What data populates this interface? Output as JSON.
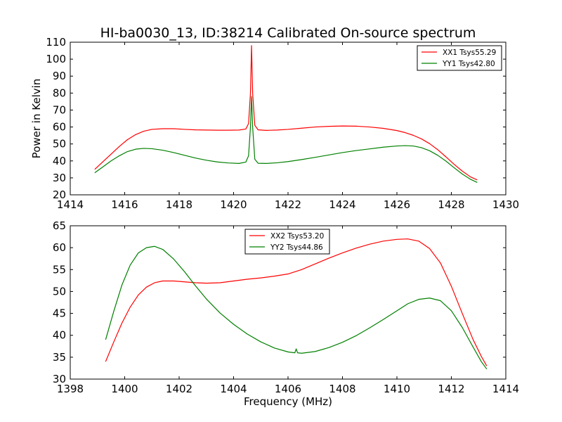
{
  "figure": {
    "title": "HI-ba0030_13, ID:38214 Calibrated On-source spectrum"
  },
  "colors": {
    "red": "#ff0000",
    "green": "#008000"
  },
  "chart_data": [
    {
      "type": "line",
      "title": "HI-ba0030_13, ID:38214 Calibrated On-source spectrum",
      "xlabel": "",
      "ylabel": "Power in Kelvin",
      "xlim": [
        1414,
        1430
      ],
      "ylim": [
        20,
        110
      ],
      "xticks": [
        1414,
        1416,
        1418,
        1420,
        1422,
        1424,
        1426,
        1428,
        1430
      ],
      "yticks": [
        20,
        30,
        40,
        50,
        60,
        70,
        80,
        90,
        100,
        110
      ],
      "grid": false,
      "legend_position": "top-right",
      "series": [
        {
          "name": "XX1 Tsys55.29",
          "color": "#ff0000",
          "x": [
            1414.9,
            1415.2,
            1415.5,
            1415.8,
            1416.1,
            1416.4,
            1416.7,
            1417.0,
            1417.4,
            1417.8,
            1418.2,
            1418.6,
            1419.0,
            1419.4,
            1419.8,
            1420.2,
            1420.45,
            1420.55,
            1420.62,
            1420.66,
            1420.7,
            1420.78,
            1420.9,
            1421.2,
            1421.6,
            1422.0,
            1422.5,
            1423.0,
            1423.5,
            1424.0,
            1424.5,
            1425.0,
            1425.5,
            1426.0,
            1426.3,
            1426.6,
            1426.9,
            1427.2,
            1427.5,
            1427.8,
            1428.1,
            1428.4,
            1428.7,
            1428.95
          ],
          "y": [
            35.0,
            39.5,
            44.0,
            48.5,
            52.5,
            55.5,
            57.5,
            58.6,
            59.0,
            59.0,
            58.6,
            58.3,
            58.2,
            58.1,
            58.1,
            58.2,
            58.8,
            62.0,
            80.0,
            108.0,
            80.0,
            61.0,
            58.3,
            58.0,
            58.2,
            58.6,
            59.3,
            60.0,
            60.4,
            60.6,
            60.5,
            60.0,
            59.2,
            57.9,
            56.7,
            55.1,
            53.0,
            50.2,
            46.6,
            42.4,
            38.0,
            34.0,
            30.6,
            28.8
          ]
        },
        {
          "name": "YY1 Tsys42.80",
          "color": "#008000",
          "x": [
            1414.9,
            1415.2,
            1415.5,
            1415.8,
            1416.1,
            1416.4,
            1416.7,
            1417.0,
            1417.4,
            1417.8,
            1418.2,
            1418.6,
            1419.0,
            1419.4,
            1419.8,
            1420.2,
            1420.45,
            1420.55,
            1420.62,
            1420.66,
            1420.7,
            1420.78,
            1420.9,
            1421.2,
            1421.6,
            1422.0,
            1422.5,
            1423.0,
            1423.5,
            1424.0,
            1424.5,
            1425.0,
            1425.5,
            1426.0,
            1426.3,
            1426.6,
            1426.9,
            1427.2,
            1427.5,
            1427.8,
            1428.1,
            1428.4,
            1428.7,
            1428.95
          ],
          "y": [
            33.0,
            36.5,
            40.0,
            43.0,
            45.5,
            46.9,
            47.4,
            47.2,
            46.3,
            44.9,
            43.3,
            41.7,
            40.4,
            39.4,
            38.8,
            38.5,
            39.3,
            43.0,
            60.0,
            78.0,
            60.0,
            41.0,
            38.6,
            38.5,
            38.9,
            39.6,
            40.8,
            42.1,
            43.5,
            44.9,
            46.1,
            47.1,
            48.1,
            48.8,
            49.0,
            48.8,
            47.8,
            46.0,
            43.3,
            39.9,
            36.0,
            32.3,
            29.2,
            27.3
          ]
        }
      ]
    },
    {
      "type": "line",
      "title": "",
      "xlabel": "Frequency (MHz)",
      "ylabel": "",
      "xlim": [
        1398,
        1414
      ],
      "ylim": [
        30,
        65
      ],
      "xticks": [
        1398,
        1400,
        1402,
        1404,
        1406,
        1408,
        1410,
        1412,
        1414
      ],
      "yticks": [
        30,
        35,
        40,
        45,
        50,
        55,
        60,
        65
      ],
      "grid": false,
      "legend_position": "top-center",
      "series": [
        {
          "name": "XX2 Tsys53.20",
          "color": "#ff0000",
          "x": [
            1399.3,
            1399.6,
            1399.9,
            1400.2,
            1400.5,
            1400.8,
            1401.1,
            1401.4,
            1401.8,
            1402.2,
            1402.6,
            1403.0,
            1403.5,
            1404.0,
            1404.5,
            1405.0,
            1405.5,
            1406.0,
            1406.5,
            1407.0,
            1407.5,
            1408.0,
            1408.5,
            1409.0,
            1409.5,
            1410.0,
            1410.4,
            1410.8,
            1411.2,
            1411.6,
            1412.0,
            1412.4,
            1412.8,
            1413.1,
            1413.3
          ],
          "y": [
            34.0,
            38.5,
            42.8,
            46.4,
            49.2,
            51.0,
            52.0,
            52.4,
            52.4,
            52.2,
            52.0,
            51.9,
            52.0,
            52.4,
            52.8,
            53.1,
            53.5,
            54.0,
            55.0,
            56.3,
            57.6,
            58.8,
            59.9,
            60.8,
            61.5,
            61.9,
            62.0,
            61.5,
            59.8,
            56.5,
            51.2,
            45.0,
            39.0,
            35.2,
            33.0
          ]
        },
        {
          "name": "YY2 Tsys44.86",
          "color": "#008000",
          "x": [
            1399.3,
            1399.6,
            1399.9,
            1400.2,
            1400.5,
            1400.8,
            1401.1,
            1401.4,
            1401.8,
            1402.2,
            1402.6,
            1403.0,
            1403.5,
            1404.0,
            1404.5,
            1405.0,
            1405.5,
            1406.0,
            1406.25,
            1406.3,
            1406.35,
            1406.5,
            1407.0,
            1407.5,
            1408.0,
            1408.5,
            1409.0,
            1409.5,
            1410.0,
            1410.4,
            1410.8,
            1411.2,
            1411.6,
            1412.0,
            1412.4,
            1412.8,
            1413.1,
            1413.3
          ],
          "y": [
            39.0,
            45.5,
            51.5,
            56.0,
            58.8,
            60.0,
            60.3,
            59.6,
            57.4,
            54.5,
            51.3,
            48.3,
            45.1,
            42.5,
            40.3,
            38.5,
            37.1,
            36.2,
            36.0,
            36.9,
            36.0,
            35.9,
            36.3,
            37.2,
            38.4,
            39.9,
            41.7,
            43.6,
            45.6,
            47.2,
            48.2,
            48.5,
            47.9,
            45.6,
            41.8,
            37.3,
            34.0,
            32.3
          ]
        }
      ]
    }
  ]
}
